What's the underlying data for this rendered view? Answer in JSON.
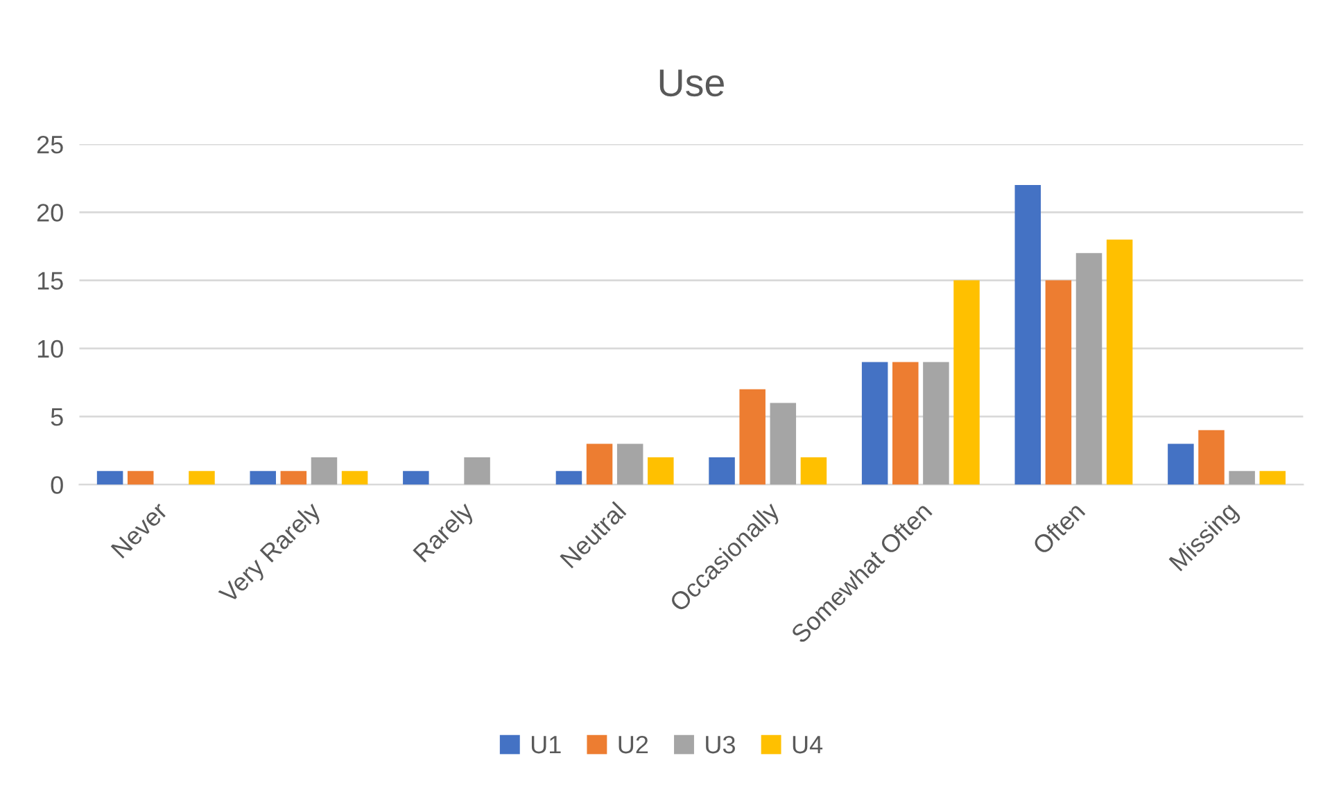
{
  "chart_data": {
    "type": "bar",
    "title": "Use",
    "categories": [
      "Never",
      "Very Rarely",
      "Rarely",
      "Neutral",
      "Occasionally",
      "Somewhat Often",
      "Often",
      "Missing"
    ],
    "series": [
      {
        "name": "U1",
        "color": "#4472c4",
        "values": [
          1,
          1,
          1,
          1,
          2,
          9,
          22,
          3
        ]
      },
      {
        "name": "U2",
        "color": "#ed7d31",
        "values": [
          1,
          1,
          0,
          3,
          7,
          9,
          15,
          4
        ]
      },
      {
        "name": "U3",
        "color": "#a5a5a5",
        "values": [
          0,
          2,
          2,
          3,
          6,
          9,
          17,
          1
        ]
      },
      {
        "name": "U4",
        "color": "#ffc000",
        "values": [
          1,
          1,
          0,
          2,
          2,
          15,
          18,
          1
        ]
      }
    ],
    "ylim": [
      0,
      25
    ],
    "yticks": [
      0,
      5,
      10,
      15,
      20,
      25
    ],
    "grid": "y",
    "legend": "bottom"
  }
}
